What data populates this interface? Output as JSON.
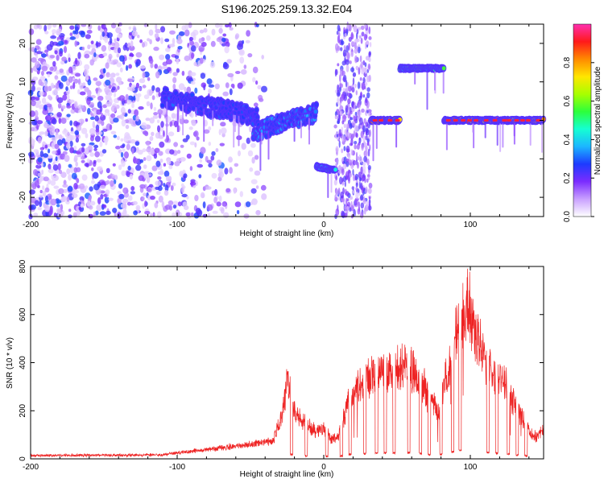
{
  "title": "S196.2025.259.13.32.E04",
  "chart_data": [
    {
      "type": "heatmap",
      "name": "spectrogram",
      "xlabel": "Height of straight line (km)",
      "ylabel": "Frequency (Hz)",
      "xlim": [
        -200,
        150
      ],
      "ylim": [
        -25,
        25
      ],
      "x_ticks": [
        -200,
        -100,
        0,
        100
      ],
      "y_ticks": [
        -20,
        -10,
        0,
        10,
        20
      ],
      "colorbar": {
        "label": "Normalized spectral amplitude",
        "range": [
          0,
          1
        ],
        "ticks": [
          "0.0",
          "0.2",
          "0.4",
          "0.6",
          "0.8"
        ],
        "tick_values": [
          0,
          0.2,
          0.4,
          0.6,
          0.8
        ],
        "colors": [
          "#ffffff",
          "#c9a0ff",
          "#7b2cff",
          "#1d3bff",
          "#1cb6ff",
          "#15ffd2",
          "#2cff3c",
          "#a8ff00",
          "#ffe600",
          "#ff8a00",
          "#ff1a1a",
          "#ff2fb0"
        ]
      },
      "features": [
        {
          "kind": "scatter_noise",
          "x_range": [
            -200,
            -40
          ],
          "freq_range": [
            -25,
            25
          ],
          "density": 0.85
        },
        {
          "kind": "track",
          "x_range": [
            -110,
            -45
          ],
          "freq_start": 6,
          "freq_end": 1,
          "amplitude": 0.3
        },
        {
          "kind": "track",
          "x_range": [
            -48,
            -5
          ],
          "freq_start": -3,
          "freq_end": 2,
          "amplitude": 0.35
        },
        {
          "kind": "track",
          "x_range": [
            -5,
            8
          ],
          "freq_start": -12,
          "freq_end": -13,
          "amplitude": 0.5
        },
        {
          "kind": "band",
          "x_range": [
            8,
            32
          ],
          "freq_range": [
            -25,
            25
          ],
          "amplitude": 0.1
        },
        {
          "kind": "track",
          "x_range": [
            32,
            52
          ],
          "freq_start": 0,
          "freq_end": 0,
          "amplitude": 0.95
        },
        {
          "kind": "track",
          "x_range": [
            52,
            82
          ],
          "freq_start": 13.5,
          "freq_end": 13.5,
          "amplitude": 0.6
        },
        {
          "kind": "track",
          "x_range": [
            82,
            150
          ],
          "freq_start": 0,
          "freq_end": 0,
          "amplitude": 0.95
        }
      ]
    },
    {
      "type": "line",
      "name": "snr",
      "xlabel": "Height of straight line (km)",
      "ylabel": "SNR (10 * v/v)",
      "xlim": [
        -200,
        150
      ],
      "ylim": [
        0,
        800
      ],
      "x_ticks": [
        -200,
        -100,
        0,
        100
      ],
      "y_ticks": [
        0,
        200,
        400,
        600,
        800
      ],
      "color": "#ee2222",
      "envelope": [
        [
          -200,
          15
        ],
        [
          -110,
          18
        ],
        [
          -90,
          35
        ],
        [
          -70,
          50
        ],
        [
          -50,
          65
        ],
        [
          -35,
          80
        ],
        [
          -28,
          200
        ],
        [
          -25,
          350
        ],
        [
          -20,
          210
        ],
        [
          -15,
          180
        ],
        [
          -10,
          150
        ],
        [
          -5,
          120
        ],
        [
          0,
          140
        ],
        [
          5,
          90
        ],
        [
          10,
          100
        ],
        [
          15,
          220
        ],
        [
          20,
          300
        ],
        [
          25,
          330
        ],
        [
          30,
          360
        ],
        [
          35,
          380
        ],
        [
          40,
          390
        ],
        [
          45,
          410
        ],
        [
          50,
          400
        ],
        [
          55,
          420
        ],
        [
          60,
          400
        ],
        [
          65,
          380
        ],
        [
          70,
          300
        ],
        [
          75,
          250
        ],
        [
          78,
          200
        ],
        [
          82,
          330
        ],
        [
          85,
          420
        ],
        [
          88,
          480
        ],
        [
          90,
          560
        ],
        [
          95,
          620
        ],
        [
          98,
          700
        ],
        [
          100,
          680
        ],
        [
          103,
          560
        ],
        [
          106,
          520
        ],
        [
          110,
          450
        ],
        [
          115,
          380
        ],
        [
          120,
          350
        ],
        [
          125,
          320
        ],
        [
          130,
          250
        ],
        [
          135,
          200
        ],
        [
          140,
          120
        ],
        [
          145,
          100
        ],
        [
          150,
          130
        ]
      ],
      "dips": [
        -22,
        -12,
        2,
        12,
        18,
        28,
        36,
        42,
        48,
        58,
        66,
        72,
        80,
        88,
        93,
        112,
        118,
        126,
        132,
        138
      ]
    }
  ]
}
